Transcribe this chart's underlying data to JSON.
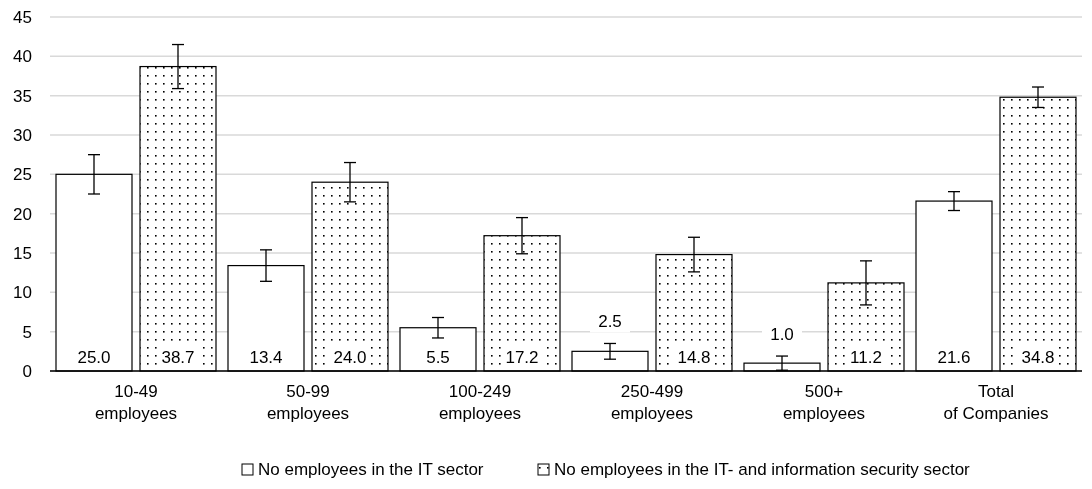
{
  "chart_data": {
    "type": "bar",
    "categories": [
      "10-49\nemployees",
      "50-99\nemployees",
      "100-249\nemployees",
      "250-499\nemployees",
      "500+\nemployees",
      "Total\nof Companies"
    ],
    "series": [
      {
        "name": "No employees in the IT sector",
        "color": "#ffffff",
        "values": [
          25.0,
          13.4,
          5.5,
          2.5,
          1.0,
          21.6
        ],
        "value_labels": [
          "25.0",
          "13.4",
          "5.5",
          "2.5",
          "1.0",
          "21.6"
        ],
        "errors": [
          2.5,
          2.0,
          1.3,
          1.0,
          0.9,
          1.2
        ]
      },
      {
        "name": "No employees in the IT- and information security sector",
        "color": "#000000",
        "values": [
          38.7,
          24.0,
          17.2,
          14.8,
          11.2,
          34.8
        ],
        "value_labels": [
          "38.7",
          "24.0",
          "17.2",
          "14.8",
          "11.2",
          "34.8"
        ],
        "errors": [
          2.8,
          2.5,
          2.3,
          2.2,
          2.8,
          1.3
        ]
      }
    ],
    "ylim": [
      0,
      45
    ],
    "yticks": [
      0,
      5,
      10,
      15,
      20,
      25,
      30,
      35,
      40,
      45
    ],
    "grid": "y",
    "legend": "bottom"
  }
}
